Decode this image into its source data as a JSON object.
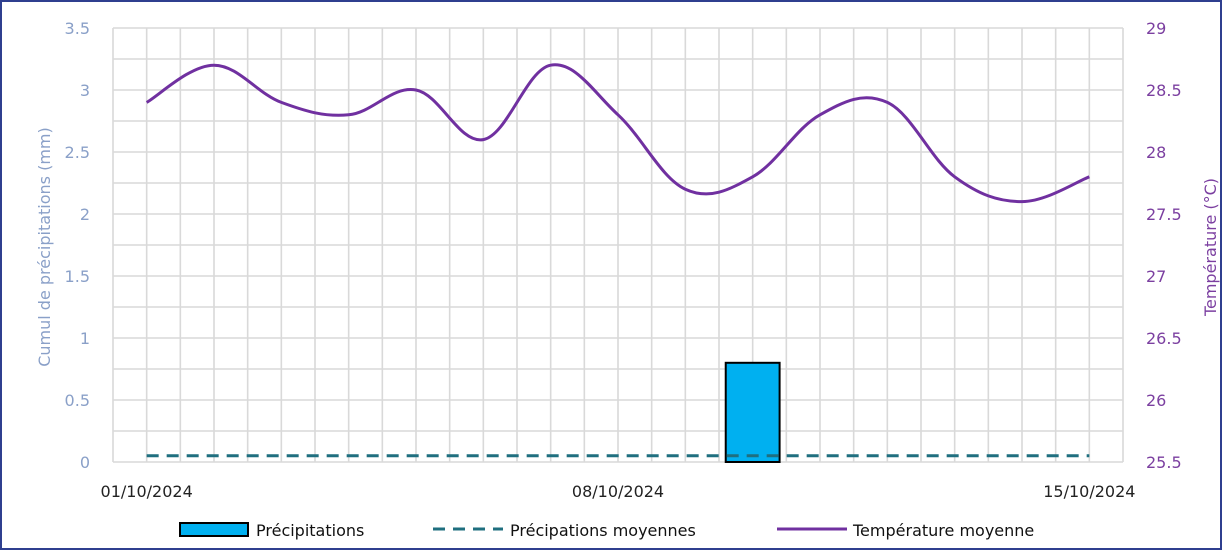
{
  "chart_data": {
    "type": "bar",
    "title": "",
    "x": [
      "01/10/2024",
      "02/10/2024",
      "03/10/2024",
      "04/10/2024",
      "05/10/2024",
      "06/10/2024",
      "07/10/2024",
      "08/10/2024",
      "09/10/2024",
      "10/10/2024",
      "11/10/2024",
      "12/10/2024",
      "13/10/2024",
      "14/10/2024",
      "15/10/2024"
    ],
    "x_tick_labels": [
      "01/10/2024",
      "08/10/2024",
      "15/10/2024"
    ],
    "ylabel_left": "Cumul de précipitations (mm)",
    "ylabel_right": "Température (°C)",
    "ylim_left": [
      0,
      3.5
    ],
    "yticks_left": [
      "0",
      "0.5",
      "1",
      "1.5",
      "2",
      "2.5",
      "3",
      "3.5"
    ],
    "ylim_right": [
      25.5,
      29
    ],
    "yticks_right": [
      "25.5",
      "26",
      "26.5",
      "27",
      "27.5",
      "28",
      "28.5",
      "29"
    ],
    "grid": true,
    "series": [
      {
        "name": "Précipitations",
        "kind": "bar",
        "axis": "left",
        "color": "#00b0f0",
        "values": [
          0,
          0,
          0,
          0,
          0,
          0,
          0,
          0,
          0,
          0.8,
          0,
          0,
          0,
          0,
          0
        ]
      },
      {
        "name": "Précipations moyennes",
        "kind": "dashed-line",
        "axis": "left",
        "color": "#1f6f7f",
        "values": [
          0.05,
          0.05,
          0.05,
          0.05,
          0.05,
          0.05,
          0.05,
          0.05,
          0.05,
          0.05,
          0.05,
          0.05,
          0.05,
          0.05,
          0.05
        ]
      },
      {
        "name": "Température moyenne",
        "kind": "line",
        "axis": "right",
        "color": "#7030a0",
        "x_half_day": true,
        "values": [
          28.4,
          28.7,
          28.4,
          28.3,
          28.5,
          28.1,
          28.7,
          28.3,
          27.7,
          27.8,
          28.3,
          28.4,
          27.8,
          27.6,
          27.8
        ]
      }
    ],
    "legend": {
      "placement": "bottom",
      "items": [
        "Précipitations",
        "Précipations moyennes",
        "Température moyenne"
      ]
    }
  }
}
